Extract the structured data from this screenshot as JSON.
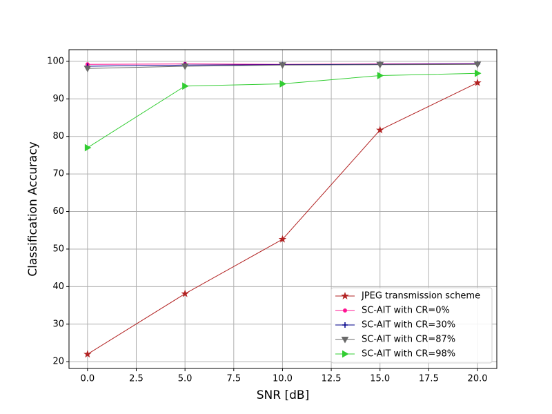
{
  "chart_data": {
    "type": "line",
    "x_label": "SNR [dB]",
    "y_label": "Classification Accuracy",
    "x": [
      0,
      5,
      10,
      15,
      20
    ],
    "series": [
      {
        "name": "JPEG transmission scheme",
        "color": "#b22222",
        "marker": "star",
        "values": [
          22.0,
          38.1,
          52.6,
          81.7,
          94.3
        ]
      },
      {
        "name": "SC-AIT with CR=0%",
        "color": "#ff1493",
        "marker": "circle",
        "values": [
          99.2,
          99.3,
          99.2,
          99.3,
          99.4
        ]
      },
      {
        "name": "SC-AIT with CR=30%",
        "color": "#00008b",
        "marker": "plus",
        "values": [
          98.7,
          99.0,
          99.1,
          99.2,
          99.3
        ]
      },
      {
        "name": "SC-AIT with CR=87%",
        "color": "#696969",
        "marker": "triangle-down",
        "values": [
          98.1,
          98.7,
          99.0,
          99.1,
          99.2
        ]
      },
      {
        "name": "SC-AIT with CR=98%",
        "color": "#32cd32",
        "marker": "triangle-right",
        "values": [
          77.0,
          93.4,
          94.0,
          96.2,
          96.8
        ]
      }
    ],
    "xlim": [
      -0.95,
      20.99
    ],
    "ylim": [
      18.2,
      103.1
    ],
    "xticks": [
      {
        "value": 0,
        "label": "0.0"
      },
      {
        "value": 2.5,
        "label": "2.5"
      },
      {
        "value": 5,
        "label": "5.0"
      },
      {
        "value": 7.5,
        "label": "7.5"
      },
      {
        "value": 10,
        "label": "10.0"
      },
      {
        "value": 12.5,
        "label": "12.5"
      },
      {
        "value": 15,
        "label": "15.0"
      },
      {
        "value": 17.5,
        "label": "17.5"
      },
      {
        "value": 20,
        "label": "20.0"
      }
    ],
    "yticks": [
      20,
      30,
      40,
      50,
      60,
      70,
      80,
      90,
      100
    ],
    "grid": true,
    "legend": "lower right"
  }
}
